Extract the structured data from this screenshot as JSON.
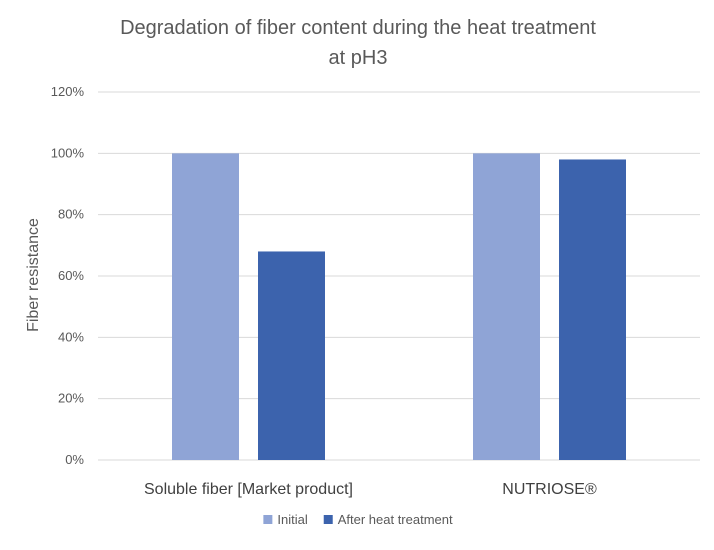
{
  "chart_data": {
    "type": "bar",
    "title_line1": "Degradation of fiber content during the heat treatment",
    "title_line2": "at pH3",
    "ylabel": "Fiber resistance",
    "xlabel": "",
    "categories": [
      "Soluble fiber [Market product]",
      "NUTRIOSE®"
    ],
    "series": [
      {
        "name": "Initial",
        "values": [
          100,
          100
        ],
        "color": "#8fa4d6"
      },
      {
        "name": "After heat treatment",
        "values": [
          68,
          98
        ],
        "color": "#3c63ad"
      }
    ],
    "ylim": [
      0,
      120
    ],
    "yticks": [
      0,
      20,
      40,
      60,
      80,
      100,
      120
    ],
    "ytick_labels": [
      "0%",
      "20%",
      "40%",
      "60%",
      "80%",
      "100%",
      "120%"
    ],
    "grid": true,
    "legend": "bottom"
  }
}
